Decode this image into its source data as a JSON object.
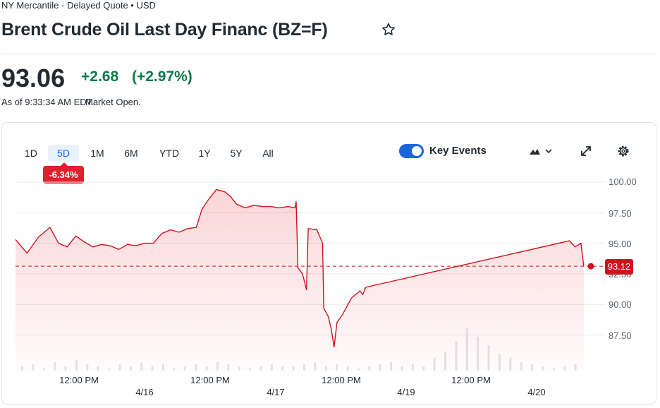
{
  "header": {
    "exchange_info": "NY Mercantile - Delayed Quote • USD",
    "title": "Brent Crude Oil Last Day Financ (BZ=F)",
    "star_icon": "star-outline-icon"
  },
  "quote": {
    "price": "93.06",
    "change": "+2.68",
    "change_pct": "(+2.97%)",
    "as_of_time": "As of 9:33:34 AM EDT.",
    "market_status": "Market Open.",
    "up_color": "#0b7a4a"
  },
  "chart": {
    "ranges": [
      "1D",
      "5D",
      "1M",
      "6M",
      "YTD",
      "1Y",
      "5Y",
      "All"
    ],
    "active_range": "5D",
    "period_change": "-6.34%",
    "key_events_label": "Key Events",
    "key_events_on": true,
    "chart_type_icon": "mountain-chart-icon",
    "expand_icon": "expand-icon",
    "settings_icon": "gear-icon",
    "line_color": "#d0121f",
    "current_price_tag": "93.12"
  },
  "chart_data": {
    "type": "area",
    "title": "",
    "xlabel": "",
    "ylabel": "",
    "ylim": [
      85.9,
      100.5
    ],
    "y_ticks": [
      "100.00",
      "97.50",
      "95.00",
      "92.50",
      "90.00",
      "87.50"
    ],
    "x_tick_labels": [
      "12:00 PM",
      "12:00 PM",
      "12:00 PM",
      "12:00 PM"
    ],
    "date_labels": [
      "4/16",
      "4/17",
      "4/19",
      "4/20"
    ],
    "reference_line": 93.12,
    "series": [
      {
        "name": "BZ=F",
        "x": [
          0,
          0.02,
          0.04,
          0.06,
          0.075,
          0.09,
          0.105,
          0.12,
          0.135,
          0.15,
          0.165,
          0.18,
          0.195,
          0.21,
          0.225,
          0.24,
          0.255,
          0.27,
          0.285,
          0.3,
          0.315,
          0.325,
          0.335,
          0.35,
          0.365,
          0.375,
          0.385,
          0.4,
          0.415,
          0.43,
          0.445,
          0.46,
          0.475,
          0.487,
          0.489,
          0.492,
          0.5,
          0.507,
          0.51,
          0.525,
          0.535,
          0.537,
          0.545,
          0.55,
          0.555,
          0.56,
          0.57,
          0.585,
          0.595,
          0.6,
          0.605,
          0.61,
          0.965,
          0.975,
          0.985,
          0.99
        ],
        "values": [
          95.3,
          94.2,
          95.5,
          96.3,
          95.0,
          94.7,
          95.6,
          95.1,
          94.7,
          94.9,
          94.8,
          94.5,
          94.9,
          94.8,
          95.0,
          95.0,
          95.8,
          96.1,
          95.9,
          96.2,
          96.3,
          97.8,
          98.5,
          99.4,
          99.2,
          98.8,
          98.2,
          97.9,
          98.1,
          98.0,
          98.0,
          97.9,
          98.0,
          97.9,
          98.4,
          93.0,
          92.5,
          91.2,
          96.2,
          96.1,
          95.0,
          89.7,
          89.0,
          88.0,
          86.5,
          88.5,
          89.2,
          90.5,
          90.9,
          91.1,
          90.8,
          91.4,
          95.2,
          94.7,
          95.0,
          93.1
        ]
      }
    ],
    "volume": [
      2,
      3,
      1,
      4,
      2,
      5,
      3,
      2,
      1,
      3,
      2,
      4,
      2,
      3,
      1,
      2,
      3,
      2,
      4,
      3,
      2,
      1,
      2,
      3,
      2,
      2,
      3,
      4,
      2,
      3,
      2,
      1,
      2,
      3,
      4,
      2,
      3,
      2,
      6,
      9,
      14,
      20,
      16,
      12,
      8,
      6,
      4,
      3,
      2,
      1,
      2,
      3
    ]
  }
}
